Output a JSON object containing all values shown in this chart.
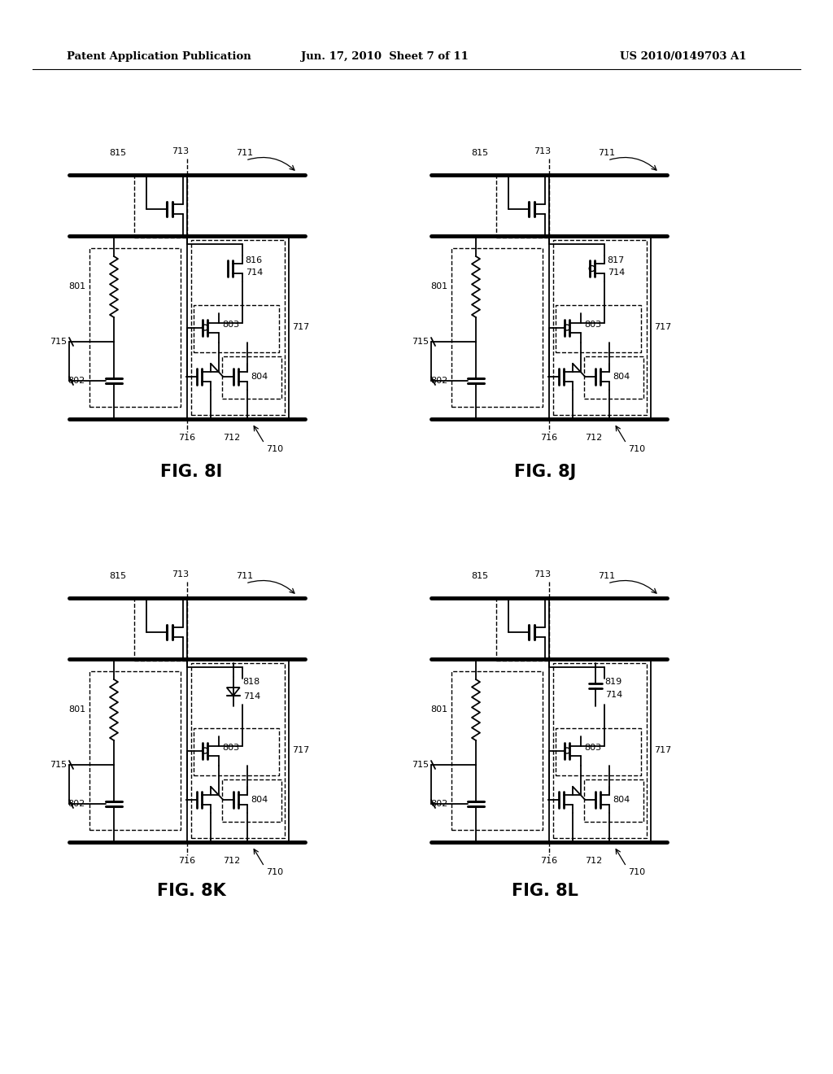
{
  "bg_color": "#ffffff",
  "header_text": "Patent Application Publication",
  "header_date": "Jun. 17, 2010  Sheet 7 of 11",
  "header_patent": "US 2010/0149703 A1",
  "circuits": [
    {
      "label": "816",
      "fig": "FIG. 8I",
      "ox": 110,
      "oy": 175
    },
    {
      "label": "817",
      "fig": "FIG. 8J",
      "ox": 555,
      "oy": 175
    },
    {
      "label": "818",
      "fig": "FIG. 8K",
      "ox": 110,
      "oy": 695
    },
    {
      "label": "819",
      "fig": "FIG. 8L",
      "ox": 555,
      "oy": 695
    }
  ]
}
